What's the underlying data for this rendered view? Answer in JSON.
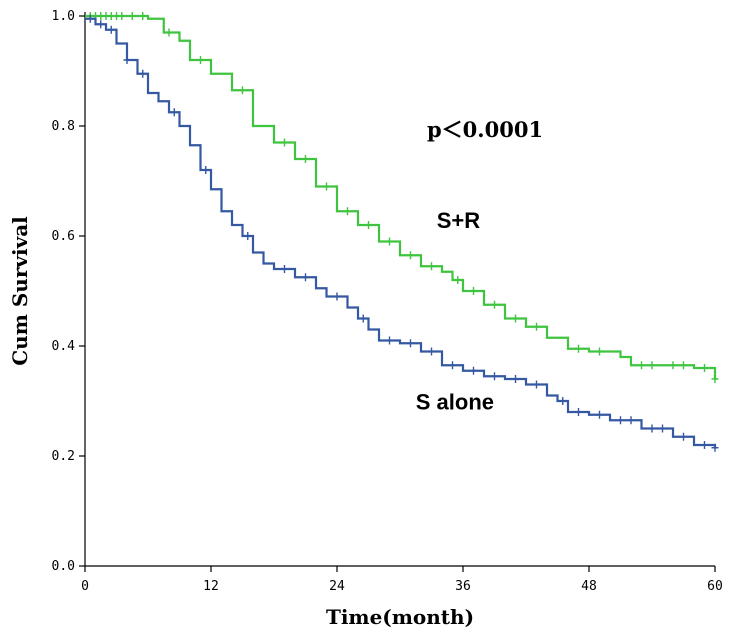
{
  "chart_data": {
    "type": "line",
    "title": "",
    "xlabel": "Time(month)",
    "ylabel": "Cum Survival",
    "xlim": [
      0,
      60
    ],
    "ylim": [
      0,
      1.0
    ],
    "x_ticks": [
      0,
      12,
      24,
      36,
      48,
      60
    ],
    "y_ticks": [
      "0.0",
      "0.2",
      "0.4",
      "0.6",
      "0.8",
      "1.0"
    ],
    "grid": false,
    "legend": "none",
    "annotation": "p＜0.0001",
    "step": true,
    "censor_marks": true,
    "series": [
      {
        "name": "S+R",
        "color": "#3ec43e",
        "points": [
          [
            0,
            1.0
          ],
          [
            6,
            0.995
          ],
          [
            7.5,
            0.97
          ],
          [
            9,
            0.955
          ],
          [
            10,
            0.92
          ],
          [
            12,
            0.895
          ],
          [
            14,
            0.865
          ],
          [
            16,
            0.8
          ],
          [
            18,
            0.77
          ],
          [
            20,
            0.74
          ],
          [
            22,
            0.69
          ],
          [
            24,
            0.645
          ],
          [
            26,
            0.62
          ],
          [
            28,
            0.59
          ],
          [
            30,
            0.565
          ],
          [
            32,
            0.545
          ],
          [
            34,
            0.535
          ],
          [
            35,
            0.52
          ],
          [
            36,
            0.5
          ],
          [
            38,
            0.475
          ],
          [
            40,
            0.45
          ],
          [
            42,
            0.435
          ],
          [
            44,
            0.415
          ],
          [
            46,
            0.395
          ],
          [
            48,
            0.39
          ],
          [
            50,
            0.39
          ],
          [
            51,
            0.38
          ],
          [
            52,
            0.365
          ],
          [
            55,
            0.365
          ],
          [
            58,
            0.36
          ],
          [
            60,
            0.34
          ]
        ],
        "censored": [
          0.5,
          1,
          1.5,
          2,
          2.5,
          3,
          3.5,
          4.5,
          5.5,
          8,
          11,
          15,
          19,
          21,
          23,
          25,
          27,
          29,
          31,
          33,
          35.5,
          37,
          39,
          41,
          43,
          47,
          49,
          53,
          54,
          56,
          57,
          59,
          60
        ]
      },
      {
        "name": "S alone",
        "color": "#3458a2",
        "points": [
          [
            0,
            0.995
          ],
          [
            1,
            0.985
          ],
          [
            2,
            0.975
          ],
          [
            3,
            0.95
          ],
          [
            4,
            0.92
          ],
          [
            5,
            0.895
          ],
          [
            6,
            0.86
          ],
          [
            7,
            0.845
          ],
          [
            8,
            0.825
          ],
          [
            9,
            0.8
          ],
          [
            10,
            0.765
          ],
          [
            11,
            0.72
          ],
          [
            12,
            0.685
          ],
          [
            13,
            0.645
          ],
          [
            14,
            0.62
          ],
          [
            15,
            0.6
          ],
          [
            16,
            0.57
          ],
          [
            17,
            0.55
          ],
          [
            18,
            0.54
          ],
          [
            20,
            0.525
          ],
          [
            22,
            0.505
          ],
          [
            23,
            0.49
          ],
          [
            25,
            0.47
          ],
          [
            26,
            0.45
          ],
          [
            27,
            0.43
          ],
          [
            28,
            0.41
          ],
          [
            30,
            0.405
          ],
          [
            32,
            0.39
          ],
          [
            34,
            0.365
          ],
          [
            36,
            0.355
          ],
          [
            38,
            0.345
          ],
          [
            40,
            0.34
          ],
          [
            42,
            0.33
          ],
          [
            44,
            0.31
          ],
          [
            45,
            0.3
          ],
          [
            46,
            0.28
          ],
          [
            48,
            0.275
          ],
          [
            50,
            0.265
          ],
          [
            53,
            0.25
          ],
          [
            56,
            0.235
          ],
          [
            58,
            0.22
          ],
          [
            60,
            0.215
          ]
        ],
        "censored": [
          0.5,
          1.5,
          2.5,
          4,
          5.5,
          8.5,
          11.5,
          15.5,
          19,
          21,
          24,
          26.5,
          29,
          31,
          33,
          35,
          37,
          39,
          41,
          43,
          45.5,
          47,
          49,
          51,
          52,
          54,
          55,
          57,
          59,
          60
        ]
      }
    ],
    "series_labels": [
      {
        "name": "S+R",
        "text": "S+R",
        "x": 33.5,
        "y": 0.615
      },
      {
        "name": "S alone",
        "text": "S alone",
        "x": 31.5,
        "y": 0.285
      }
    ],
    "annotation_pos": {
      "x": 36,
      "y": 0.795
    }
  }
}
